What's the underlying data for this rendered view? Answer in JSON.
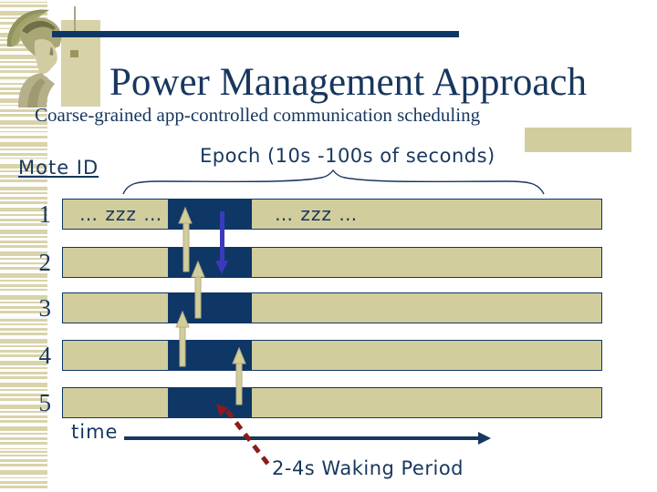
{
  "slide": {
    "title": "Power Management Approach",
    "subtitle": "Coarse-grained  app-controlled communication scheduling"
  },
  "diagram": {
    "mote_id_label": "Mote ID",
    "epoch_label": "Epoch (10s -100s of seconds)",
    "time_label": "time",
    "waking_period_label": "2-4s Waking Period",
    "rows": [
      {
        "id": "1",
        "left_text": "… zzz …",
        "right_text": "… zzz …"
      },
      {
        "id": "2",
        "left_text": "",
        "right_text": ""
      },
      {
        "id": "3",
        "left_text": "",
        "right_text": ""
      },
      {
        "id": "4",
        "left_text": "",
        "right_text": ""
      },
      {
        "id": "5",
        "left_text": "",
        "right_text": ""
      }
    ]
  },
  "colors": {
    "navy": "#0e3766",
    "text_navy": "#17375e",
    "tan": "#d2cd9d",
    "arrow_blue": "#3b3abc",
    "arrow_red": "#8e1c1c"
  }
}
